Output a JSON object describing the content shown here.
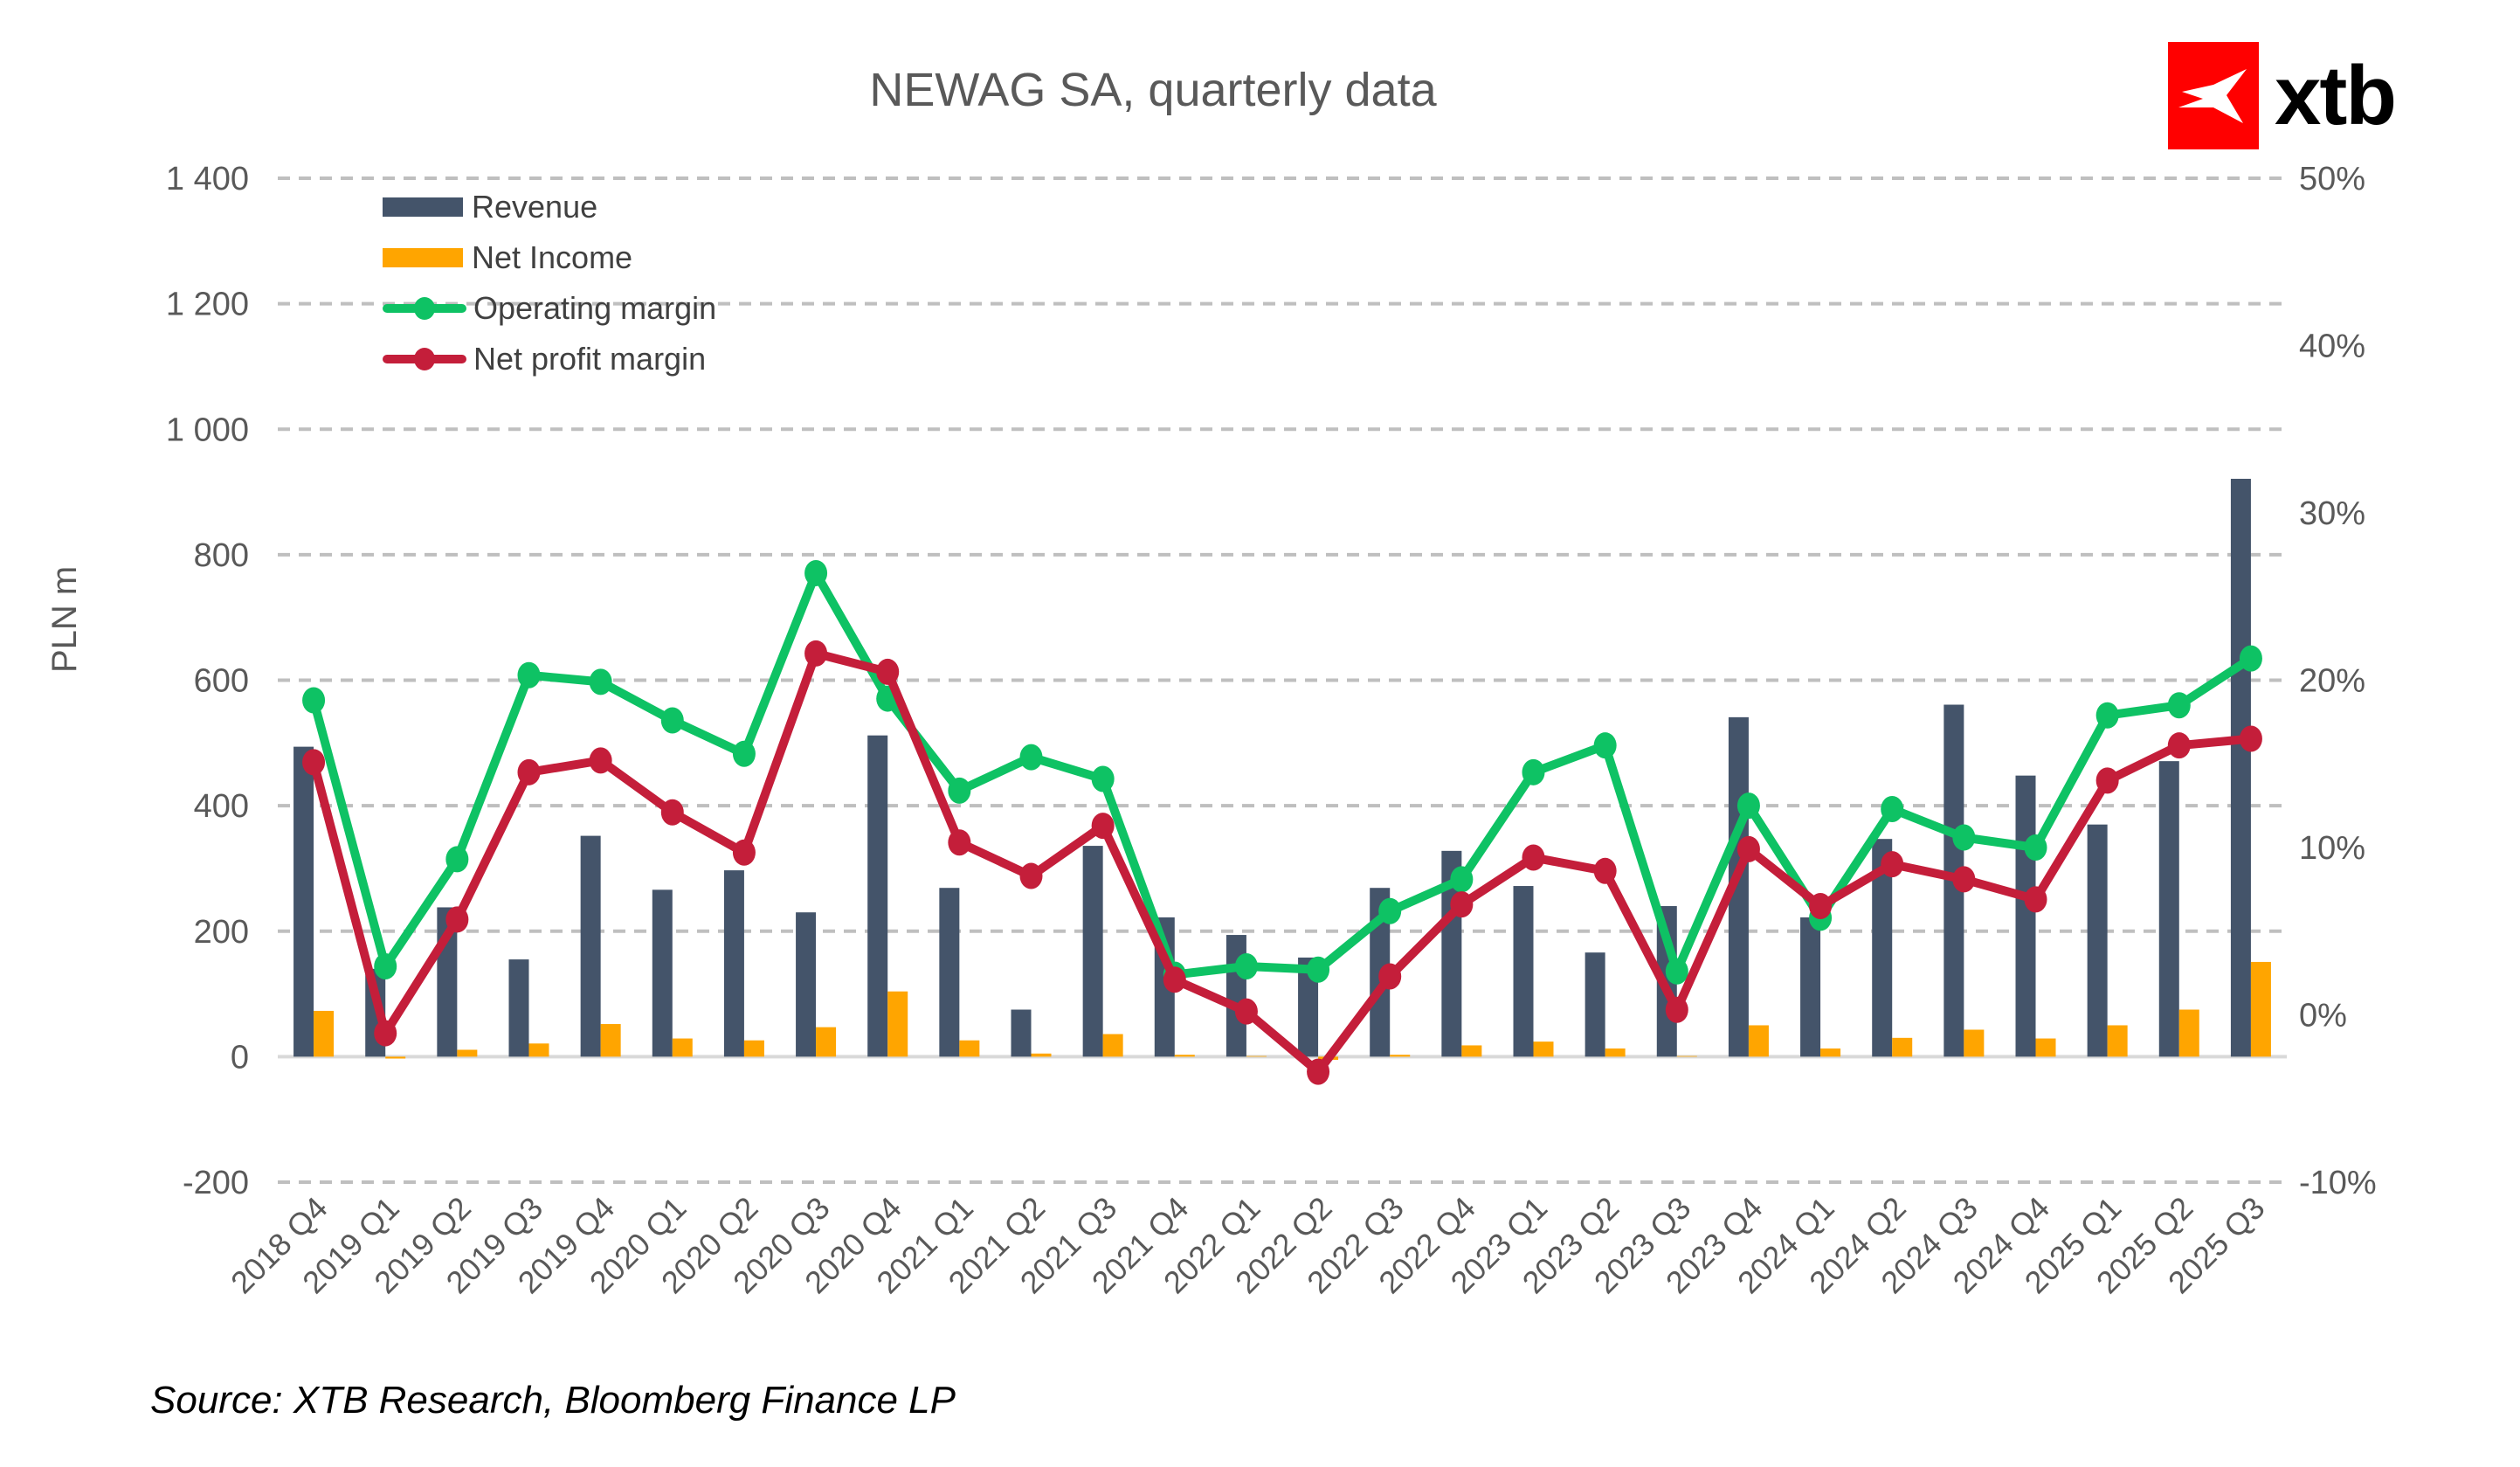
{
  "chart_data": {
    "type": "bar",
    "title": "NEWAG SA, quarterly data",
    "xlabel": "",
    "ylabel": "PLN m",
    "ylim": [
      -200,
      1400
    ],
    "y_ticks": [
      -200,
      0,
      200,
      400,
      600,
      800,
      1000,
      1200,
      1400
    ],
    "y_tick_labels": [
      "-200",
      "0",
      "200",
      "400",
      "600",
      "800",
      "1 000",
      "1 200",
      "1 400"
    ],
    "y2lim": [
      -10,
      50
    ],
    "y2_ticks": [
      -10,
      0,
      10,
      20,
      30,
      40,
      50
    ],
    "y2_tick_labels": [
      "-10%",
      "0%",
      "10%",
      "20%",
      "30%",
      "40%",
      "50%"
    ],
    "grid": true,
    "legend_position": "top-left",
    "categories": [
      "2018 Q4",
      "2019 Q1",
      "2019 Q2",
      "2019 Q3",
      "2019 Q4",
      "2020 Q1",
      "2020 Q2",
      "2020 Q3",
      "2020 Q4",
      "2021 Q1",
      "2021 Q2",
      "2021 Q3",
      "2021 Q4",
      "2022 Q1",
      "2022 Q2",
      "2022 Q3",
      "2022 Q4",
      "2023 Q1",
      "2023 Q2",
      "2023 Q3",
      "2023 Q4",
      "2024 Q1",
      "2024 Q2",
      "2024 Q3",
      "2024 Q4",
      "2025 Q1",
      "2025 Q2",
      "2025 Q3"
    ],
    "series": [
      {
        "name": "Revenue",
        "type": "bar",
        "axis": "left",
        "color": "#44546a",
        "values": [
          494,
          140,
          238,
          155,
          352,
          266,
          297,
          230,
          512,
          269,
          75,
          336,
          222,
          194,
          158,
          269,
          328,
          272,
          166,
          240,
          541,
          222,
          347,
          561,
          448,
          370,
          471,
          921
        ]
      },
      {
        "name": "Net Income",
        "type": "bar",
        "axis": "left",
        "color": "#ffa500",
        "values": [
          73,
          -3,
          11,
          21,
          52,
          29,
          26,
          47,
          104,
          26,
          5,
          36,
          3,
          1,
          -5,
          3,
          18,
          24,
          13,
          1,
          50,
          13,
          30,
          43,
          29,
          50,
          75,
          151
        ]
      },
      {
        "name": "Operating margin",
        "type": "line",
        "axis": "right",
        "unit": "%",
        "color": "#0ec264",
        "values": [
          18.8,
          2.9,
          9.3,
          20.3,
          19.9,
          17.6,
          15.6,
          26.4,
          18.9,
          13.4,
          15.4,
          14.1,
          2.4,
          2.9,
          2.7,
          6.2,
          8.1,
          14.5,
          16.1,
          2.6,
          12.5,
          5.8,
          12.3,
          10.6,
          10.0,
          17.9,
          18.5,
          21.3
        ]
      },
      {
        "name": "Net profit margin",
        "type": "line",
        "axis": "right",
        "unit": "%",
        "color": "#c41e3a",
        "values": [
          15.1,
          -1.1,
          5.7,
          14.5,
          15.2,
          12.1,
          9.7,
          21.6,
          20.5,
          10.3,
          8.3,
          11.3,
          2.1,
          0.2,
          -3.4,
          2.3,
          6.6,
          9.4,
          8.6,
          0.3,
          9.9,
          6.5,
          9.0,
          8.1,
          6.9,
          14.0,
          16.1,
          16.5
        ]
      }
    ],
    "source": "Source: XTB Research, Bloomberg Finance LP"
  },
  "logo": {
    "text": "xtb",
    "icon": "xtb-x-icon",
    "brand_color": "#ff0000"
  },
  "colors": {
    "grid": "#bfbfbf",
    "axis_text": "#595959",
    "zero_line": "#d9d9d9"
  }
}
